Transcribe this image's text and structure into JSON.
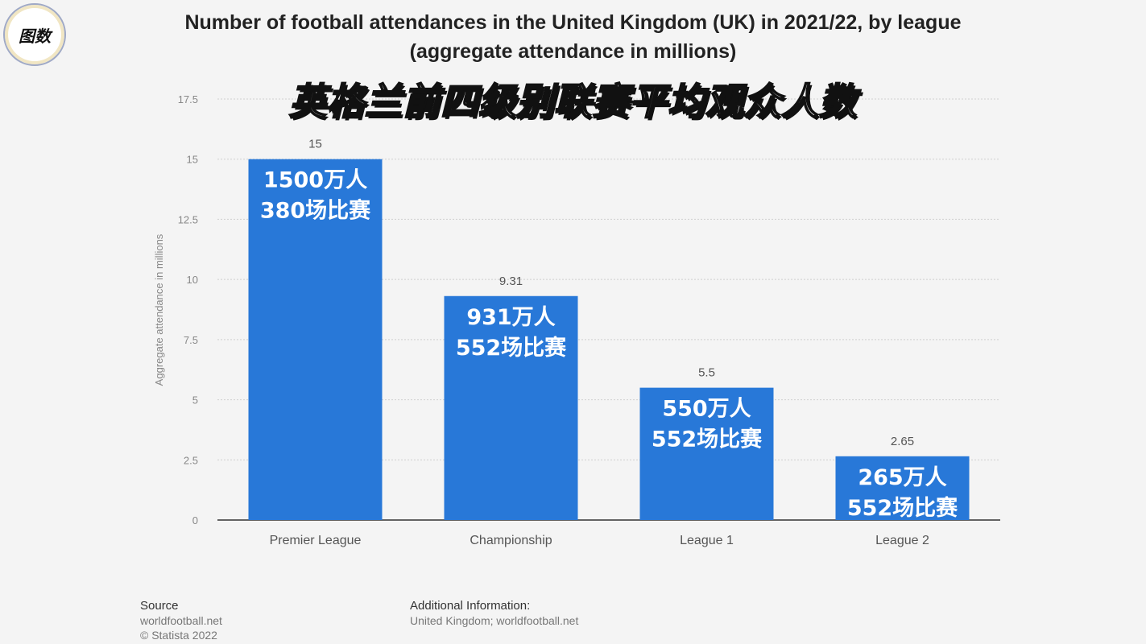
{
  "logo": {
    "text": "图数"
  },
  "header": {
    "title_line1": "Number of football attendances in the United Kingdom (UK) in 2021/22, by league",
    "title_line2": "(aggregate attendance in millions)",
    "overlay_title": "英格兰前四级别联赛平均观众人数"
  },
  "footer": {
    "source_heading": "Source",
    "source_name": "worldfootball.net",
    "copyright": "© Statista 2022",
    "info_heading": "Additional Information:",
    "info_text": "United Kingdom; worldfootball.net"
  },
  "colors": {
    "bar": "#2878d8",
    "background": "#f4f4f4",
    "grid": "#cfcfcf"
  },
  "chart_data": {
    "type": "bar",
    "title": "Number of football attendances in the United Kingdom (UK) in 2021/22, by league",
    "subtitle": "(aggregate attendance in millions)",
    "xlabel": "",
    "ylabel": "Aggregate attendance in millions",
    "ylim": [
      0,
      17.5
    ],
    "yticks": [
      "0",
      "2.5",
      "5",
      "7.5",
      "10",
      "12.5",
      "15",
      "17.5"
    ],
    "grid": true,
    "categories": [
      "Premier League",
      "Championship",
      "League 1",
      "League 2"
    ],
    "values": [
      15,
      9.31,
      5.5,
      2.65
    ],
    "value_labels": [
      "15",
      "9.31",
      "5.5",
      "2.65"
    ],
    "bar_annotations": [
      [
        "1500万人",
        "380场比赛"
      ],
      [
        "931万人",
        "552场比赛"
      ],
      [
        "550万人",
        "552场比赛"
      ],
      [
        "265万人",
        "552场比赛"
      ]
    ]
  }
}
